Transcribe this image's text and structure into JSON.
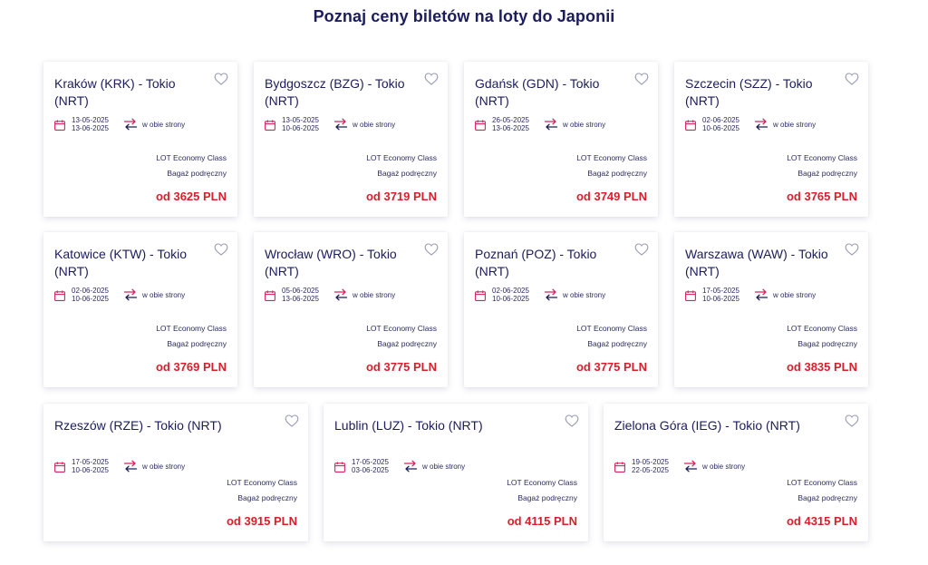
{
  "page": {
    "title": "Poznaj ceny biletów na loty do Japonii"
  },
  "icons": {
    "calendar": "calendar-icon",
    "swap": "round-trip-arrows-icon",
    "heart": "heart-outline-icon"
  },
  "colors": {
    "navy": "#1b1d5c",
    "price_red": "#d71f2b",
    "accent_pink": "#d4245d"
  },
  "cards": [
    {
      "title": "Kraków (KRK) - Tokio (NRT)",
      "date_from": "13-05-2025",
      "date_to": "13-06-2025",
      "trip": "w obie strony",
      "fare_class": "LOT Economy Class",
      "baggage": "Bagaż podręczny",
      "price": "od 3625 PLN"
    },
    {
      "title": "Bydgoszcz (BZG) - Tokio (NRT)",
      "date_from": "13-05-2025",
      "date_to": "10-06-2025",
      "trip": "w obie strony",
      "fare_class": "LOT Economy Class",
      "baggage": "Bagaż podręczny",
      "price": "od 3719 PLN"
    },
    {
      "title": "Gdańsk (GDN) - Tokio (NRT)",
      "date_from": "26-05-2025",
      "date_to": "13-06-2025",
      "trip": "w obie strony",
      "fare_class": "LOT Economy Class",
      "baggage": "Bagaż podręczny",
      "price": "od 3749 PLN"
    },
    {
      "title": "Szczecin (SZZ) - Tokio (NRT)",
      "date_from": "02-06-2025",
      "date_to": "10-06-2025",
      "trip": "w obie strony",
      "fare_class": "LOT Economy Class",
      "baggage": "Bagaż podręczny",
      "price": "od 3765 PLN"
    },
    {
      "title": "Katowice (KTW) - Tokio (NRT)",
      "date_from": "02-06-2025",
      "date_to": "10-06-2025",
      "trip": "w obie strony",
      "fare_class": "LOT Economy Class",
      "baggage": "Bagaż podręczny",
      "price": "od 3769 PLN"
    },
    {
      "title": "Wrocław (WRO) - Tokio (NRT)",
      "date_from": "05-06-2025",
      "date_to": "13-06-2025",
      "trip": "w obie strony",
      "fare_class": "LOT Economy Class",
      "baggage": "Bagaż podręczny",
      "price": "od 3775 PLN"
    },
    {
      "title": "Poznań (POZ) - Tokio (NRT)",
      "date_from": "02-06-2025",
      "date_to": "10-06-2025",
      "trip": "w obie strony",
      "fare_class": "LOT Economy Class",
      "baggage": "Bagaż podręczny",
      "price": "od 3775 PLN"
    },
    {
      "title": "Warszawa (WAW) - Tokio (NRT)",
      "date_from": "17-05-2025",
      "date_to": "10-06-2025",
      "trip": "w obie strony",
      "fare_class": "LOT Economy Class",
      "baggage": "Bagaż podręczny",
      "price": "od 3835 PLN"
    },
    {
      "title": "Rzeszów (RZE) - Tokio (NRT)",
      "date_from": "17-05-2025",
      "date_to": "10-06-2025",
      "trip": "w obie strony",
      "fare_class": "LOT Economy Class",
      "baggage": "Bagaż podręczny",
      "price": "od 3915 PLN"
    },
    {
      "title": "Lublin (LUZ) - Tokio (NRT)",
      "date_from": "17-05-2025",
      "date_to": "03-06-2025",
      "trip": "w obie strony",
      "fare_class": "LOT Economy Class",
      "baggage": "Bagaż podręczny",
      "price": "od 4115 PLN"
    },
    {
      "title": "Zielona Góra (IEG) - Tokio (NRT)",
      "date_from": "19-05-2025",
      "date_to": "22-05-2025",
      "trip": "w obie strony",
      "fare_class": "LOT Economy Class",
      "baggage": "Bagaż podręczny",
      "price": "od 4315 PLN"
    }
  ]
}
